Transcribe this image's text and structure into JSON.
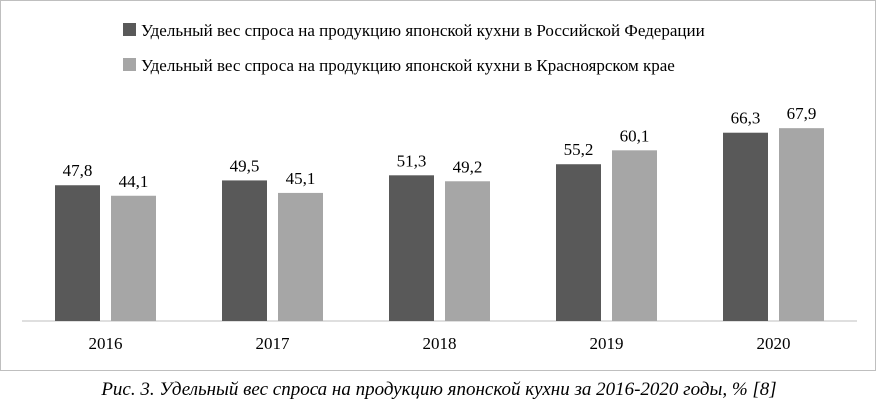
{
  "chart_data": {
    "type": "bar",
    "categories": [
      "2016",
      "2017",
      "2018",
      "2019",
      "2020"
    ],
    "series": [
      {
        "name": "Удельный вес спроса на продукцию японской кухни в Российской Федерации",
        "values": [
          47.8,
          49.5,
          51.3,
          55.2,
          66.3
        ],
        "labels": [
          "47,8",
          "49,5",
          "51,3",
          "55,2",
          "66,3"
        ],
        "color": "#595959"
      },
      {
        "name": "Удельный вес спроса на продукцию японской кухни в Красноярском крае",
        "values": [
          44.1,
          45.1,
          49.2,
          60.1,
          67.9
        ],
        "labels": [
          "44,1",
          "45,1",
          "49,2",
          "60,1",
          "67,9"
        ],
        "color": "#a6a6a6"
      }
    ],
    "title": "",
    "xlabel": "",
    "ylabel": "",
    "ylim": [
      0,
      100
    ],
    "grid": false,
    "legend_position": "top-left"
  },
  "caption": "Рис. 3. Удельный вес спроса на продукцию японской кухни за 2016-2020 годы, % [8]"
}
